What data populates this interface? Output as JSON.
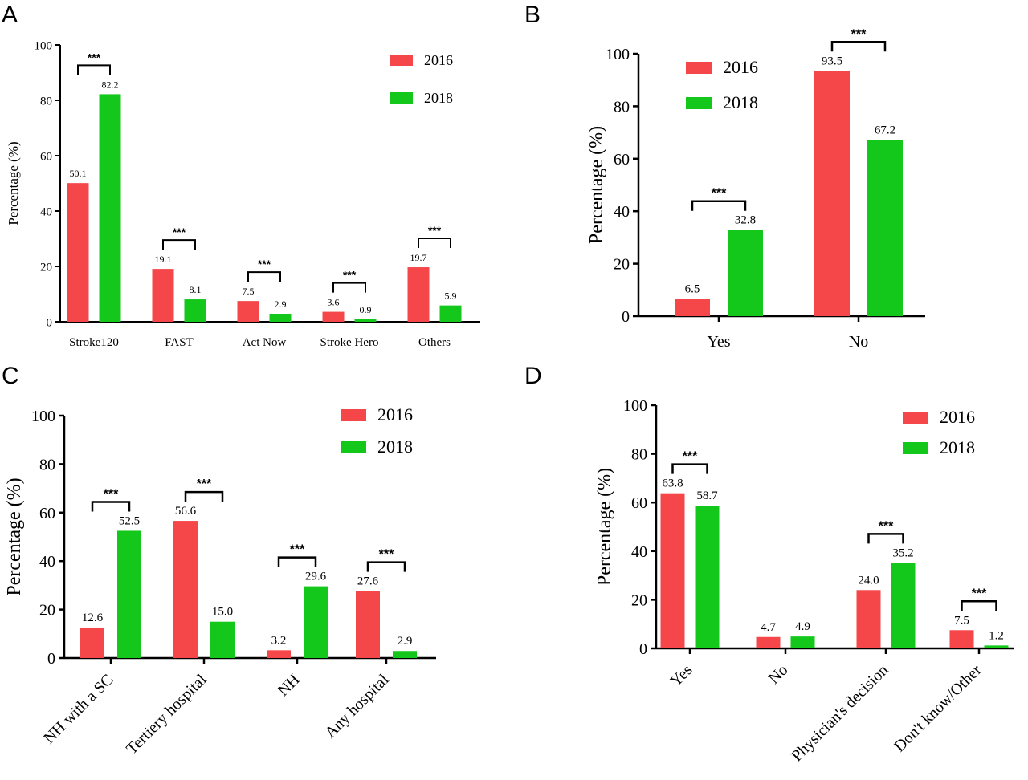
{
  "colors": {
    "s2016": "#F5474A",
    "s2018": "#13C71B"
  },
  "chart_data": [
    {
      "panel": "A",
      "type": "bar",
      "ylabel": "Percentage (%)",
      "ylim": [
        0,
        100
      ],
      "yticks": [
        0,
        20,
        40,
        60,
        80,
        100
      ],
      "categories": [
        "Stroke120",
        "FAST",
        "Act Now",
        "Stroke Hero",
        "Others"
      ],
      "series": [
        {
          "name": "2016",
          "values": [
            50.1,
            19.1,
            7.5,
            3.6,
            19.7
          ],
          "labels": [
            "50.1",
            "19.1",
            "7.5",
            "3.6",
            "19.7"
          ]
        },
        {
          "name": "2018",
          "values": [
            82.2,
            8.1,
            2.9,
            0.9,
            5.9
          ],
          "labels": [
            "82.2",
            "8.1",
            "2.9",
            "0.9",
            "5.9"
          ]
        }
      ],
      "significance": [
        "***",
        "***",
        "***",
        "***",
        "***"
      ],
      "legend": "top-right"
    },
    {
      "panel": "B",
      "type": "bar",
      "ylabel": "Percentage (%)",
      "ylim": [
        0,
        100
      ],
      "yticks": [
        0,
        20,
        40,
        60,
        80,
        100
      ],
      "categories": [
        "Yes",
        "No"
      ],
      "series": [
        {
          "name": "2016",
          "values": [
            6.5,
            93.5
          ],
          "labels": [
            "6.5",
            "93.5"
          ]
        },
        {
          "name": "2018",
          "values": [
            32.8,
            67.2
          ],
          "labels": [
            "32.8",
            "67.2"
          ]
        }
      ],
      "significance": [
        "***",
        "***"
      ],
      "legend": "top-left"
    },
    {
      "panel": "C",
      "type": "bar",
      "ylabel": "Percentage (%)",
      "ylim": [
        0,
        100
      ],
      "yticks": [
        0,
        20,
        40,
        60,
        80,
        100
      ],
      "categories": [
        "NH with a SC",
        "Tertiery hospital",
        "NH",
        "Any hospital"
      ],
      "series": [
        {
          "name": "2016",
          "values": [
            12.6,
            56.6,
            3.2,
            27.6
          ],
          "labels": [
            "12.6",
            "56.6",
            "3.2",
            "27.6"
          ]
        },
        {
          "name": "2018",
          "values": [
            52.5,
            15.0,
            29.6,
            2.9
          ],
          "labels": [
            "52.5",
            "15.0",
            "29.6",
            "2.9"
          ]
        }
      ],
      "significance": [
        "***",
        "***",
        "***",
        "***"
      ],
      "legend": "top-right"
    },
    {
      "panel": "D",
      "type": "bar",
      "ylabel": "Percentage (%)",
      "ylim": [
        0,
        100
      ],
      "yticks": [
        0,
        20,
        40,
        60,
        80,
        100
      ],
      "categories": [
        "Yes",
        "No",
        "Physician's decision",
        "Don't know/Other"
      ],
      "series": [
        {
          "name": "2016",
          "values": [
            63.8,
            4.7,
            24.0,
            7.5
          ],
          "labels": [
            "63.8",
            "4.7",
            "24.0",
            "7.5"
          ]
        },
        {
          "name": "2018",
          "values": [
            58.7,
            4.9,
            35.2,
            1.2
          ],
          "labels": [
            "58.7",
            "4.9",
            "35.2",
            "1.2"
          ]
        }
      ],
      "significance": [
        "***",
        null,
        "***",
        "***"
      ],
      "legend": "top-right"
    }
  ]
}
